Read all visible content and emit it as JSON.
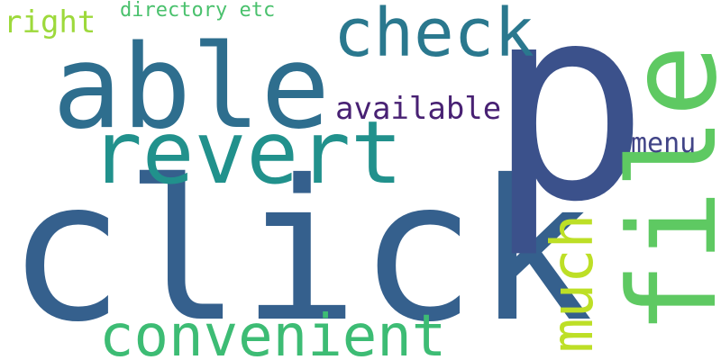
{
  "words": [
    {
      "id": "click",
      "text": "click",
      "color": "#35608d"
    },
    {
      "id": "p",
      "text": "p",
      "color": "#3b518b"
    },
    {
      "id": "able",
      "text": "able",
      "color": "#2e6e8e"
    },
    {
      "id": "file",
      "text": "file",
      "color": "#5ec962"
    },
    {
      "id": "revert",
      "text": "revert",
      "color": "#21918c"
    },
    {
      "id": "check",
      "text": "check",
      "color": "#2a788e"
    },
    {
      "id": "convenient",
      "text": "convenient",
      "color": "#3dbc74"
    },
    {
      "id": "much",
      "text": "much",
      "color": "#bddf26"
    },
    {
      "id": "available",
      "text": "available",
      "color": "#482173"
    },
    {
      "id": "right",
      "text": "right",
      "color": "#9dd93b"
    },
    {
      "id": "menu",
      "text": "menu",
      "color": "#414487"
    },
    {
      "id": "directory",
      "text": "directory etc",
      "color": "#4ac16d"
    }
  ]
}
